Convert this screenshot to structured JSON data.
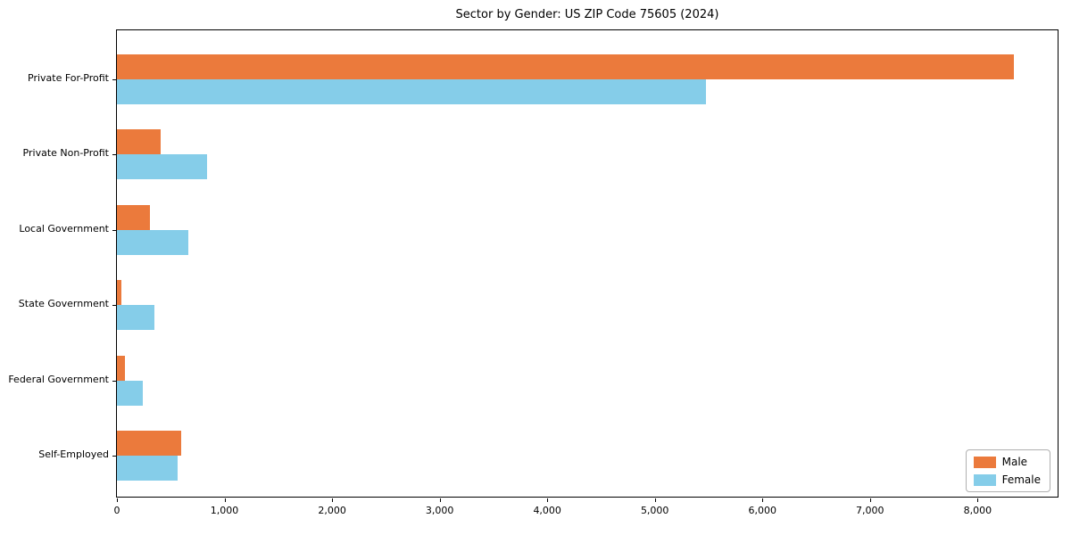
{
  "chart_data": {
    "type": "bar",
    "orientation": "horizontal",
    "title": "Sector by Gender: US ZIP Code 75605 (2024)",
    "categories": [
      "Private For-Profit",
      "Private Non-Profit",
      "Local Government",
      "State Government",
      "Federal Government",
      "Self-Employed"
    ],
    "series": [
      {
        "name": "Male",
        "color": "#EB7A3C",
        "values": [
          8335,
          410,
          305,
          40,
          75,
          595
        ]
      },
      {
        "name": "Female",
        "color": "#85CDE9",
        "values": [
          5475,
          835,
          665,
          350,
          240,
          560
        ]
      }
    ],
    "xlabel": "",
    "ylabel": "",
    "xlim": [
      0,
      8760
    ],
    "xticks": {
      "values": [
        0,
        1000,
        2000,
        3000,
        4000,
        5000,
        6000,
        7000,
        8000
      ],
      "labels": [
        "0",
        "1,000",
        "2,000",
        "3,000",
        "4,000",
        "5,000",
        "6,000",
        "7,000",
        "8,000"
      ]
    },
    "grid": false,
    "legend": {
      "position": "lower right"
    }
  }
}
